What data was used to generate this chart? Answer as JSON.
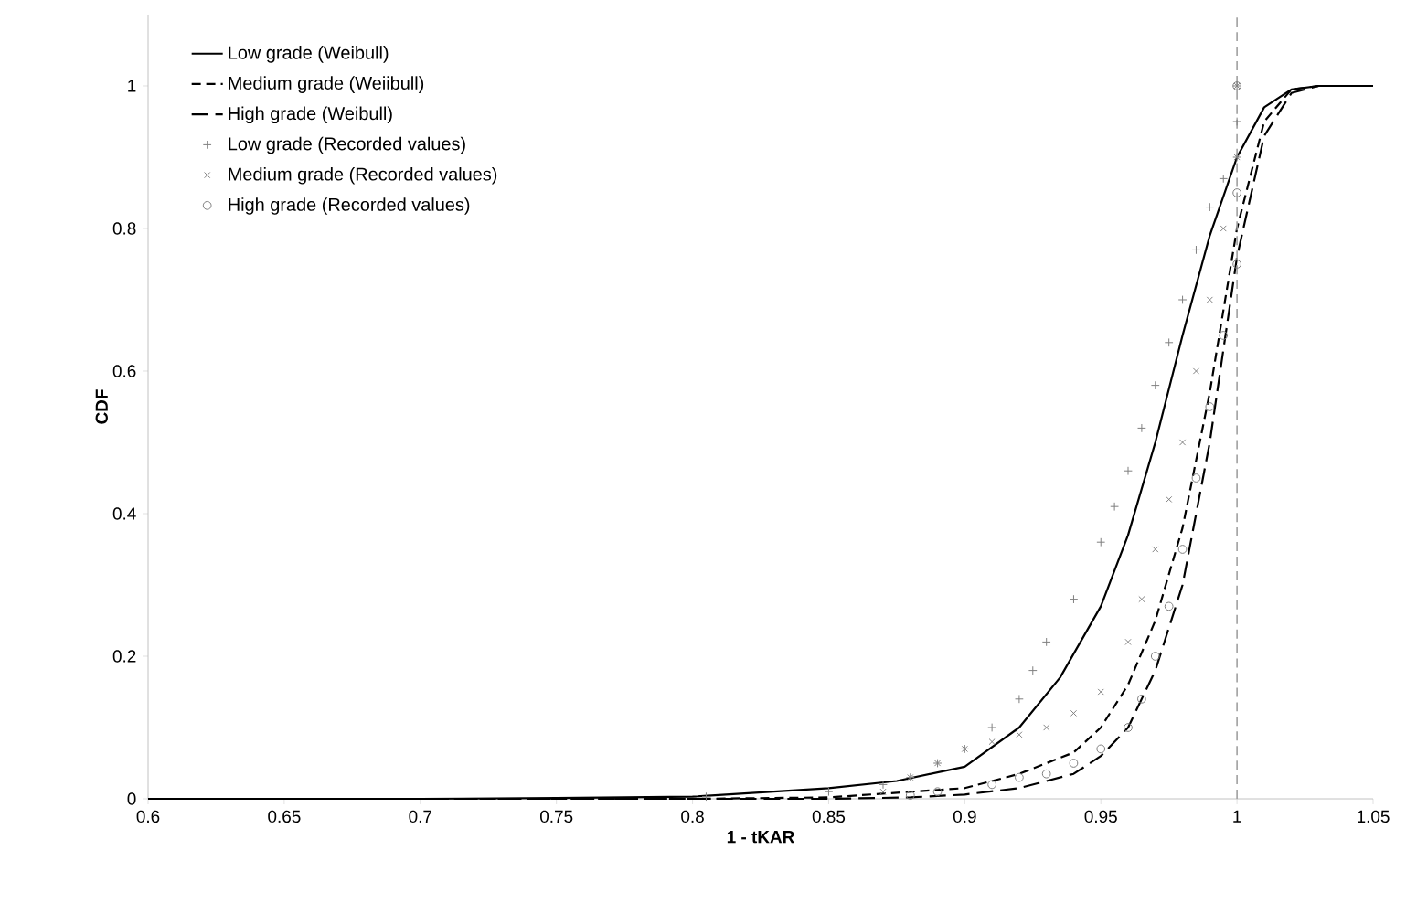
{
  "chart_data": {
    "type": "line",
    "xlabel": "1 - tKAR",
    "ylabel": "CDF",
    "xlim": [
      0.6,
      1.05
    ],
    "ylim": [
      0,
      1.1
    ],
    "xticks": [
      0.6,
      0.65,
      0.7,
      0.75,
      0.8,
      0.85,
      0.9,
      0.95,
      1,
      1.05
    ],
    "yticks": [
      0,
      0.2,
      0.4,
      0.6,
      0.8,
      1
    ],
    "grid": false,
    "legend": "top left",
    "ref_lines": [
      {
        "axis": "x",
        "value": 1,
        "color": "#a0a0a0",
        "line_style": "dashed"
      }
    ],
    "series": [
      {
        "name": "Low grade (Weibull)",
        "type": "line",
        "color": "#000000",
        "line_style": "solid",
        "marker": "none",
        "x": [
          0.6,
          0.7,
          0.75,
          0.8,
          0.85,
          0.875,
          0.9,
          0.92,
          0.935,
          0.95,
          0.96,
          0.97,
          0.98,
          0.99,
          1.0,
          1.01,
          1.02,
          1.03,
          1.05
        ],
        "values": [
          0,
          0,
          0.001,
          0.003,
          0.015,
          0.025,
          0.045,
          0.1,
          0.17,
          0.27,
          0.37,
          0.5,
          0.65,
          0.79,
          0.9,
          0.97,
          0.995,
          1,
          1
        ]
      },
      {
        "name": "Medium grade (Weiibull)",
        "type": "line",
        "color": "#000000",
        "line_style": "dashed",
        "marker": "none",
        "x": [
          0.6,
          0.8,
          0.85,
          0.9,
          0.92,
          0.94,
          0.95,
          0.96,
          0.97,
          0.98,
          0.99,
          1.0,
          1.01,
          1.02,
          1.03,
          1.05
        ],
        "values": [
          0,
          0,
          0.002,
          0.015,
          0.035,
          0.065,
          0.1,
          0.16,
          0.25,
          0.38,
          0.57,
          0.8,
          0.95,
          0.995,
          1,
          1
        ]
      },
      {
        "name": "High grade (Weibull)",
        "type": "line",
        "color": "#000000",
        "line_style": "dashed",
        "marker": "none",
        "x": [
          0.6,
          0.85,
          0.88,
          0.9,
          0.92,
          0.94,
          0.95,
          0.96,
          0.97,
          0.98,
          0.99,
          1.0,
          1.01,
          1.02,
          1.03,
          1.04
        ],
        "values": [
          0,
          0,
          0.002,
          0.006,
          0.015,
          0.035,
          0.06,
          0.1,
          0.18,
          0.3,
          0.5,
          0.76,
          0.93,
          0.99,
          1,
          1
        ]
      },
      {
        "name": "Low grade (Recorded values)",
        "type": "scatter",
        "color": "#808080",
        "marker": "plus",
        "x": [
          0.805,
          0.85,
          0.87,
          0.88,
          0.89,
          0.9,
          0.91,
          0.92,
          0.925,
          0.93,
          0.94,
          0.95,
          0.955,
          0.96,
          0.965,
          0.97,
          0.975,
          0.98,
          0.985,
          0.99,
          0.995,
          1.0,
          1.0,
          1.0
        ],
        "values": [
          0.003,
          0.01,
          0.02,
          0.03,
          0.05,
          0.07,
          0.1,
          0.14,
          0.18,
          0.22,
          0.28,
          0.36,
          0.41,
          0.46,
          0.52,
          0.58,
          0.64,
          0.7,
          0.77,
          0.83,
          0.87,
          0.9,
          0.95,
          1.0
        ]
      },
      {
        "name": "Medium grade (Recorded values)",
        "type": "scatter",
        "color": "#808080",
        "marker": "cross",
        "x": [
          0.87,
          0.88,
          0.89,
          0.9,
          0.91,
          0.92,
          0.93,
          0.94,
          0.95,
          0.96,
          0.965,
          0.97,
          0.975,
          0.98,
          0.985,
          0.99,
          0.995,
          1.0,
          1.0
        ],
        "values": [
          0.01,
          0.03,
          0.05,
          0.07,
          0.08,
          0.09,
          0.1,
          0.12,
          0.15,
          0.22,
          0.28,
          0.35,
          0.42,
          0.5,
          0.6,
          0.7,
          0.8,
          0.9,
          1.0
        ]
      },
      {
        "name": "High grade (Recorded values)",
        "type": "scatter",
        "color": "#808080",
        "marker": "circle",
        "x": [
          0.88,
          0.89,
          0.91,
          0.92,
          0.93,
          0.94,
          0.95,
          0.96,
          0.965,
          0.97,
          0.975,
          0.98,
          0.985,
          0.99,
          0.995,
          1.0,
          1.0,
          1.0
        ],
        "values": [
          0.005,
          0.01,
          0.02,
          0.03,
          0.035,
          0.05,
          0.07,
          0.1,
          0.14,
          0.2,
          0.27,
          0.35,
          0.45,
          0.55,
          0.65,
          0.75,
          0.85,
          1.0
        ]
      }
    ]
  }
}
